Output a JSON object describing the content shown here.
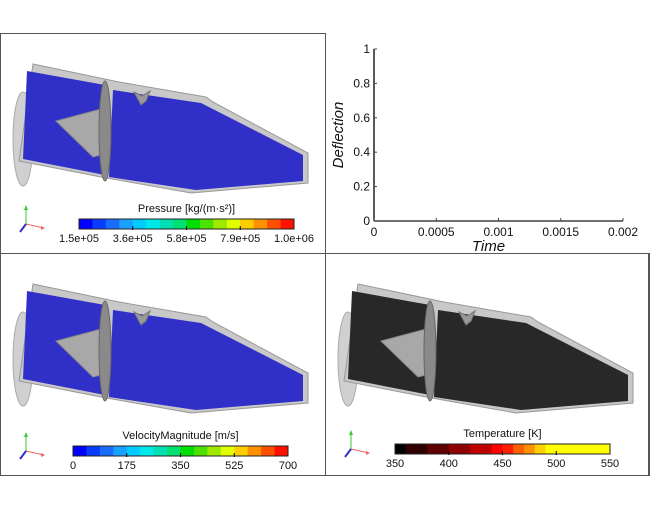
{
  "panels": {
    "pressure": {
      "title": "Pressure [kg/(m·s²)]",
      "ticks": [
        "1.5e+05",
        "3.6e+05",
        "5.8e+05",
        "7.9e+05",
        "1.0e+06"
      ],
      "colors": [
        "#0000ff",
        "#0a3cff",
        "#1a6cff",
        "#1aa0ff",
        "#00ccff",
        "#00e8e8",
        "#00e0b0",
        "#00e070",
        "#00dd00",
        "#50e000",
        "#a0e800",
        "#e0ff00",
        "#ffcc00",
        "#ff9000",
        "#ff5000",
        "#ff1000"
      ],
      "field_color": "#3030c8"
    },
    "velocity": {
      "title": "VelocityMagnitude [m/s]",
      "ticks": [
        "0",
        "175",
        "350",
        "525",
        "700"
      ],
      "colors": [
        "#0000ff",
        "#0a3cff",
        "#1a6cff",
        "#1aa0ff",
        "#00ccff",
        "#00e8e8",
        "#00e0b0",
        "#00e070",
        "#00dd00",
        "#50e000",
        "#a0e800",
        "#e0ff00",
        "#ffcc00",
        "#ff9000",
        "#ff5000",
        "#ff1000"
      ],
      "field_color": "#3030c8"
    },
    "temperature": {
      "title": "Temperature [K]",
      "ticks": [
        "350",
        "400",
        "450",
        "500",
        "550"
      ],
      "colors": [
        "#000000",
        "#300000",
        "#300000",
        "#600000",
        "#600000",
        "#900000",
        "#900000",
        "#c00000",
        "#c00000",
        "#ff0000",
        "#ff2000",
        "#ff6000",
        "#ff9000",
        "#ffd000",
        "#ffff00",
        "#ffff00",
        "#ffff00",
        "#ffff00",
        "#ffff00",
        "#ffff00"
      ],
      "field_color": "#282828"
    }
  },
  "chart_data": {
    "type": "line",
    "xlabel": "Time",
    "ylabel": "Deflection",
    "xlim": [
      0,
      0.002
    ],
    "ylim": [
      0,
      1
    ],
    "x_ticks": [
      "0",
      "0.0005",
      "0.001",
      "0.0015",
      "0.002"
    ],
    "y_ticks": [
      "0",
      "0.2",
      "0.4",
      "0.6",
      "0.8",
      "1"
    ],
    "series": [],
    "grid": false
  }
}
